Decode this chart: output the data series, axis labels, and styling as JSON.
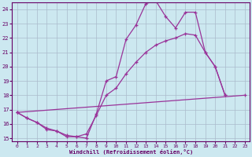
{
  "bg_color": "#cce8f0",
  "line_color": "#993399",
  "grid_color": "#aabbcc",
  "xlim": [
    0,
    23
  ],
  "ylim": [
    15,
    24
  ],
  "xticks": [
    0,
    1,
    2,
    3,
    4,
    5,
    6,
    7,
    8,
    9,
    10,
    11,
    12,
    13,
    14,
    15,
    16,
    17,
    18,
    19,
    20,
    21,
    22,
    23
  ],
  "yticks": [
    15,
    16,
    17,
    18,
    19,
    20,
    21,
    22,
    23,
    24
  ],
  "xlabel": "Windchill (Refroidissement éolien,°C)",
  "line1_x": [
    0,
    1,
    2,
    3,
    4,
    5,
    6,
    7,
    8,
    9,
    10,
    11,
    12,
    13,
    14,
    15,
    16,
    17,
    18,
    19,
    20,
    21
  ],
  "line1_y": [
    16.8,
    16.4,
    16.1,
    15.6,
    15.5,
    15.1,
    15.1,
    15.0,
    16.7,
    19.0,
    19.3,
    21.9,
    22.9,
    24.4,
    24.6,
    23.5,
    22.7,
    23.8,
    23.8,
    21.0,
    20.0,
    18.0
  ],
  "line2_x": [
    0,
    1,
    2,
    3,
    4,
    5,
    6,
    7,
    8,
    9,
    10,
    11,
    12,
    13,
    14,
    15,
    16,
    17,
    18,
    19,
    20,
    21
  ],
  "line2_y": [
    16.8,
    16.4,
    16.1,
    15.7,
    15.5,
    15.2,
    15.1,
    15.3,
    16.6,
    18.0,
    18.5,
    19.5,
    20.3,
    21.0,
    21.5,
    21.8,
    22.0,
    22.3,
    22.2,
    21.0,
    20.0,
    18.0
  ],
  "line3_x": [
    0,
    23
  ],
  "line3_y": [
    16.8,
    18.0
  ]
}
